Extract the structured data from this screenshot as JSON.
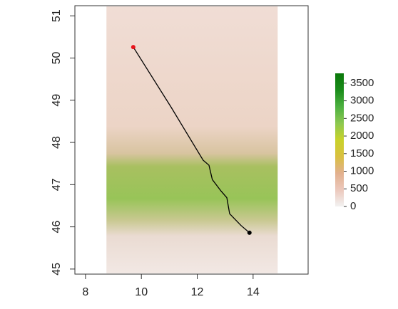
{
  "chart_data": {
    "type": "route-map",
    "xlim": [
      7.62,
      15.97
    ],
    "ylim": [
      44.88,
      51.24
    ],
    "xticks": [
      8,
      10,
      12,
      14
    ],
    "yticks": [
      45,
      46,
      47,
      48,
      49,
      50,
      51
    ],
    "raster_xlim": [
      8.75,
      14.88
    ],
    "route": {
      "color": "#000000",
      "x": [
        9.71,
        11.06,
        12.21,
        12.42,
        12.54,
        12.85,
        13.06,
        13.16,
        13.57,
        13.87
      ],
      "y": [
        50.26,
        48.84,
        47.58,
        47.46,
        47.12,
        46.85,
        46.69,
        46.31,
        46.03,
        45.86
      ]
    },
    "start_color": "#e8141c",
    "end_color": "#000000",
    "legend": {
      "lim": [
        0,
        3780
      ],
      "ticks": [
        0,
        500,
        1000,
        1500,
        2000,
        2500,
        3000,
        3500
      ],
      "colors": [
        "#f2f2f2",
        "#ecc8bc",
        "#e2b08e",
        "#d9c040",
        "#c8d22a",
        "#8cc850",
        "#4cb040",
        "#1a8c1a",
        "#0a780a"
      ]
    }
  }
}
